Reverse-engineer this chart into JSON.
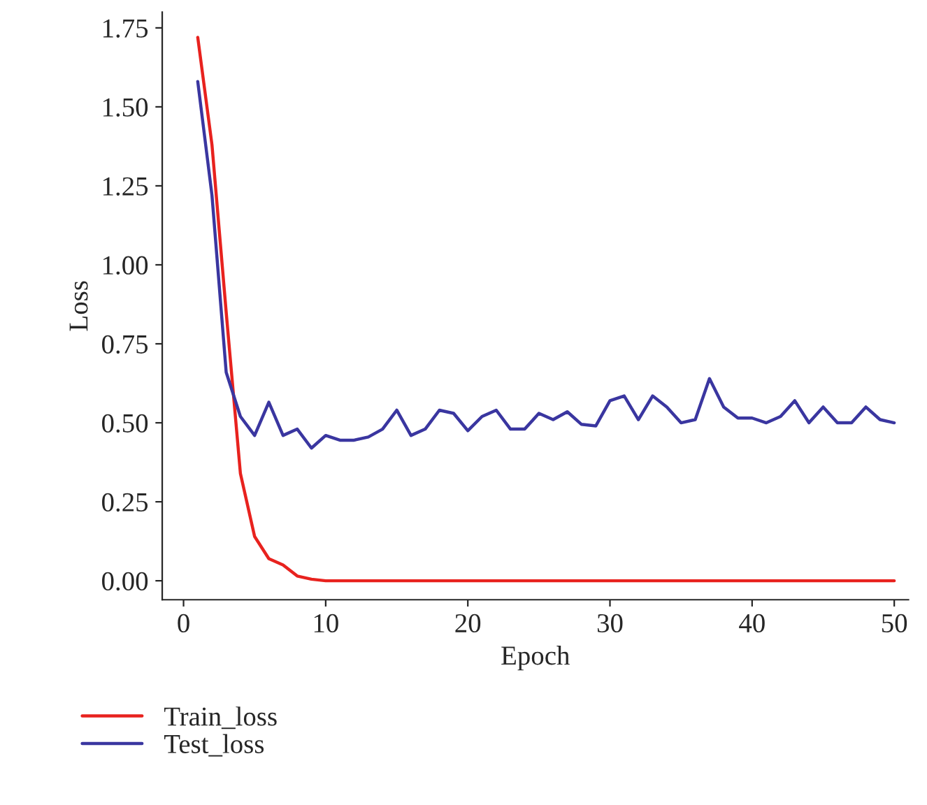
{
  "chart_data": {
    "type": "line",
    "xlabel": "Epoch",
    "ylabel": "Loss",
    "legend": "bottom left",
    "grid": false,
    "xlim": [
      -1.5,
      51
    ],
    "xticks": [
      0,
      10,
      20,
      30,
      40,
      50
    ],
    "ylim": [
      -0.06,
      1.8
    ],
    "yticks": [
      {
        "value": 0,
        "label": "0.00"
      },
      {
        "value": 0.25,
        "label": "0.25"
      },
      {
        "value": 0.5,
        "label": "0.50"
      },
      {
        "value": 0.75,
        "label": "0.75"
      },
      {
        "value": 1.0,
        "label": "1.00"
      },
      {
        "value": 1.25,
        "label": "1.25"
      },
      {
        "value": 1.5,
        "label": "1.50"
      },
      {
        "value": 1.75,
        "label": "1.75"
      }
    ],
    "x": [
      1,
      2,
      3,
      4,
      5,
      6,
      7,
      8,
      9,
      10,
      11,
      12,
      13,
      14,
      15,
      16,
      17,
      18,
      19,
      20,
      21,
      22,
      23,
      24,
      25,
      26,
      27,
      28,
      29,
      30,
      31,
      32,
      33,
      34,
      35,
      36,
      37,
      38,
      39,
      40,
      41,
      42,
      43,
      44,
      45,
      46,
      47,
      48,
      49,
      50
    ],
    "series": [
      {
        "name": "Train_loss",
        "color": "#e8221e",
        "values": [
          1.72,
          1.38,
          0.85,
          0.34,
          0.14,
          0.07,
          0.05,
          0.015,
          0.005,
          0.0,
          0.0,
          0.0,
          0.0,
          0.0,
          0.0,
          0.0,
          0.0,
          0.0,
          0.0,
          0.0,
          0.0,
          0.0,
          0.0,
          0.0,
          0.0,
          0.0,
          0.0,
          0.0,
          0.0,
          0.0,
          0.0,
          0.0,
          0.0,
          0.0,
          0.0,
          0.0,
          0.0,
          0.0,
          0.0,
          0.0,
          0.0,
          0.0,
          0.0,
          0.0,
          0.0,
          0.0,
          0.0,
          0.0,
          0.0,
          0.0
        ]
      },
      {
        "name": "Test_loss",
        "color": "#3a36a0",
        "values": [
          1.58,
          1.22,
          0.66,
          0.52,
          0.46,
          0.565,
          0.46,
          0.48,
          0.42,
          0.46,
          0.445,
          0.445,
          0.455,
          0.48,
          0.54,
          0.46,
          0.48,
          0.54,
          0.53,
          0.475,
          0.52,
          0.54,
          0.48,
          0.48,
          0.53,
          0.51,
          0.535,
          0.495,
          0.49,
          0.57,
          0.585,
          0.51,
          0.585,
          0.55,
          0.5,
          0.51,
          0.64,
          0.55,
          0.515,
          0.515,
          0.5,
          0.52,
          0.57,
          0.5,
          0.55,
          0.5,
          0.5,
          0.55,
          0.51,
          0.5
        ]
      }
    ]
  }
}
